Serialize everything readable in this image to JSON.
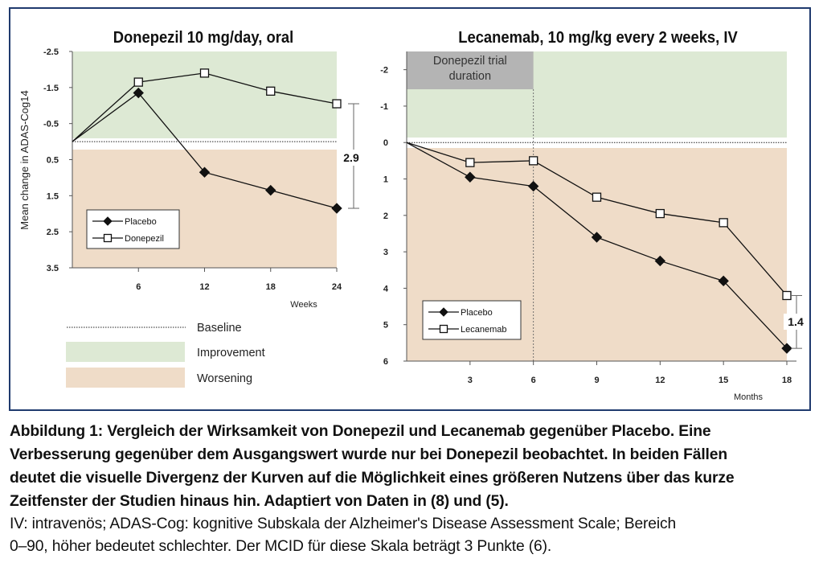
{
  "colors": {
    "improvement": "#dde9d4",
    "worsening": "#efdcc8",
    "trial_shade": "#b4b4b4",
    "frame": "#1f3a6e",
    "line": "#111111"
  },
  "chart_data": [
    {
      "type": "line",
      "title": "Donepezil 10 mg/day, oral",
      "ylabel": "Mean change in ADAS-Cog14",
      "xlabel": "Weeks",
      "y_inverted": true,
      "ylim": [
        -2.5,
        3.5
      ],
      "yticks": [
        -2.5,
        -1.5,
        -0.5,
        0.5,
        1.5,
        2.5,
        3.5
      ],
      "ytick_labels": [
        "-2.5",
        "-1.5",
        "-0.5",
        "0.5",
        "1.5",
        "2.5",
        "3.5"
      ],
      "xlim": [
        0,
        24
      ],
      "xticks": [
        6,
        12,
        18,
        24
      ],
      "xtick_labels": [
        "6",
        "12",
        "18",
        "24"
      ],
      "baseline": 0,
      "series": [
        {
          "name": "Placebo",
          "marker": "filled-diamond",
          "x": [
            0,
            6,
            12,
            18,
            24
          ],
          "y": [
            0,
            -1.35,
            0.85,
            1.35,
            1.85
          ]
        },
        {
          "name": "Donepezil",
          "marker": "open-square",
          "x": [
            0,
            6,
            12,
            18,
            24
          ],
          "y": [
            0,
            -1.65,
            -1.9,
            -1.4,
            -1.05
          ]
        }
      ],
      "annotation": {
        "label": "2.9",
        "x": 24,
        "y_from": -1.05,
        "y_to": 1.85
      },
      "legend_position": "bottom-left"
    },
    {
      "type": "line",
      "title": "Lecanemab, 10 mg/kg every 2 weeks, IV",
      "xlabel": "Months",
      "y_inverted": true,
      "ylim": [
        -2.5,
        6
      ],
      "yticks": [
        -2,
        -1,
        0,
        1,
        2,
        3,
        4,
        5,
        6
      ],
      "ytick_labels": [
        "-2",
        "-1",
        "0",
        "1",
        "2",
        "3",
        "4",
        "5",
        "6"
      ],
      "xlim": [
        0,
        18
      ],
      "xticks": [
        3,
        6,
        9,
        12,
        15,
        18
      ],
      "xtick_labels": [
        "3",
        "6",
        "9",
        "12",
        "15",
        "18"
      ],
      "baseline": 0,
      "trial_window": {
        "label_lines": [
          "Donepezil trial",
          "duration"
        ],
        "x_from": 0,
        "x_to": 6
      },
      "series": [
        {
          "name": "Placebo",
          "marker": "filled-diamond",
          "x": [
            0,
            3,
            6,
            9,
            12,
            15,
            18
          ],
          "y": [
            0,
            0.95,
            1.2,
            2.6,
            3.25,
            3.8,
            5.65
          ]
        },
        {
          "name": "Lecanemab",
          "marker": "open-square",
          "x": [
            0,
            3,
            6,
            9,
            12,
            15,
            18
          ],
          "y": [
            0,
            0.55,
            0.5,
            1.5,
            1.95,
            2.2,
            4.2
          ]
        }
      ],
      "annotation": {
        "label": "1.4",
        "x": 18,
        "y_from": 4.2,
        "y_to": 5.65
      },
      "legend_position": "bottom-left"
    }
  ],
  "key_legend": [
    {
      "label": "Baseline",
      "kind": "dotted-line"
    },
    {
      "label": "Improvement",
      "kind": "green-swatch"
    },
    {
      "label": "Worsening",
      "kind": "tan-swatch"
    }
  ],
  "caption": {
    "bold_lines": [
      "Abbildung 1: Vergleich der Wirksamkeit von Donepezil und Lecanemab gegenüber Placebo. Eine",
      "Verbesserung gegenüber dem Ausgangswert wurde nur bei Donepezil beobachtet. In beiden Fällen",
      "deutet die visuelle Divergenz der Kurven auf die Möglichkeit eines größeren Nutzens über das kurze",
      "Zeitfenster der Studien hinaus hin. Adaptiert von Daten in (8) und (5)."
    ],
    "regular_lines": [
      "IV: intravenös; ADAS-Cog: kognitive Subskala der Alzheimer's Disease Assessment Scale; Bereich",
      "0–90, höher bedeutet schlechter. Der MCID für diese Skala beträgt 3 Punkte (6)."
    ]
  }
}
